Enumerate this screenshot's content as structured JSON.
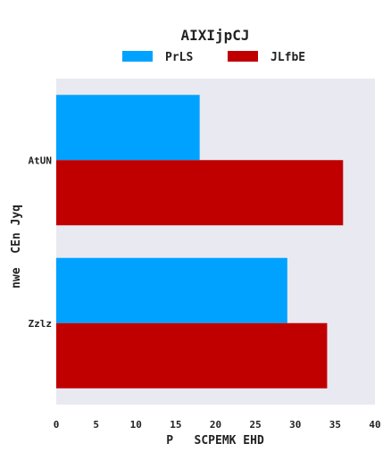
{
  "chart_data": {
    "type": "bar",
    "orientation": "horizontal",
    "title": "AIXIjpCJ",
    "xlabel": "P   SCPEMK EHD",
    "ylabel": "nwe  CEn Jyq",
    "categories": [
      "AtUN",
      "Zzlz"
    ],
    "series": [
      {
        "name": "PrLS",
        "values": [
          18,
          29
        ],
        "color": "#00a2ff"
      },
      {
        "name": "JLfbE",
        "values": [
          36,
          34
        ],
        "color": "#c00000"
      }
    ],
    "xlim": [
      0,
      40
    ],
    "xticks": [
      "0",
      "5",
      "10",
      "15",
      "20",
      "25",
      "30",
      "35",
      "40"
    ],
    "grid": false,
    "legend_position": "top",
    "plot_background": "#e9e9f2"
  }
}
